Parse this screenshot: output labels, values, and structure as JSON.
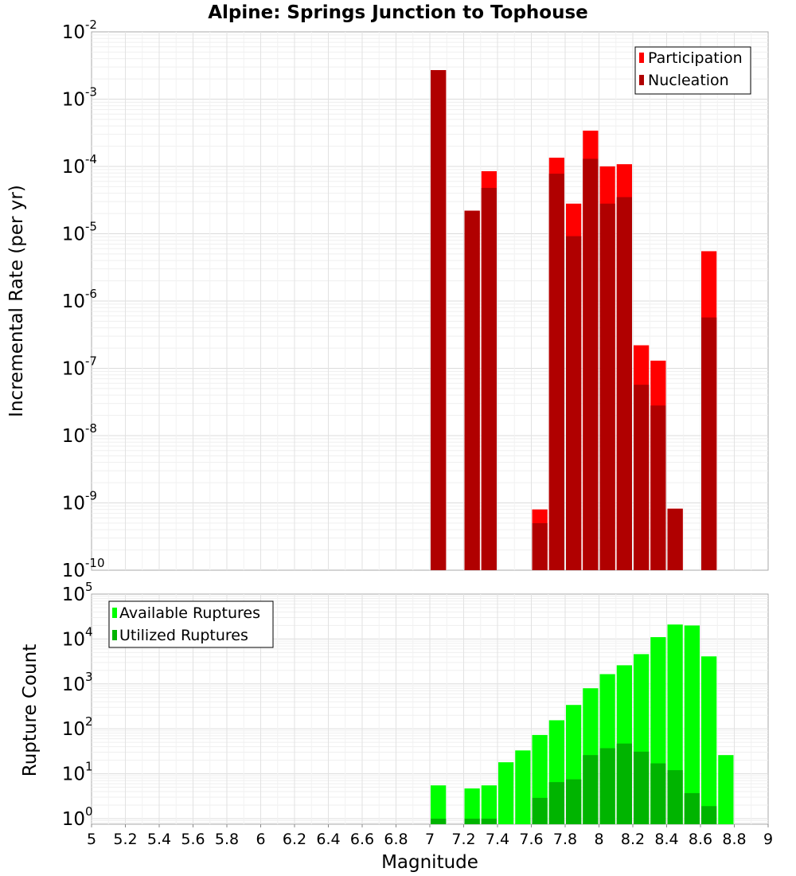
{
  "chart_data": [
    {
      "type": "bar",
      "title": "Alpine: Springs Junction to Tophouse",
      "xlabel": "",
      "ylabel": "Incremental Rate (per yr)",
      "yscale": "log",
      "ylim": [
        1e-10,
        0.01
      ],
      "xlim": [
        5,
        9
      ],
      "bar_width": 0.1,
      "ytick_labels": [
        {
          "base": "10",
          "exp": "-10"
        },
        {
          "base": "10",
          "exp": "-9"
        },
        {
          "base": "10",
          "exp": "-8"
        },
        {
          "base": "10",
          "exp": "-7"
        },
        {
          "base": "10",
          "exp": "-6"
        },
        {
          "base": "10",
          "exp": "-5"
        },
        {
          "base": "10",
          "exp": "-4"
        },
        {
          "base": "10",
          "exp": "-3"
        },
        {
          "base": "10",
          "exp": "-2"
        }
      ],
      "legend_position": "top-right",
      "grid": true,
      "x": [
        7.05,
        7.25,
        7.35,
        7.65,
        7.75,
        7.85,
        7.95,
        8.05,
        8.15,
        8.25,
        8.35,
        8.45,
        8.65
      ],
      "series": [
        {
          "name": "Participation",
          "color": "#ff0000",
          "values": [
            0.0027,
            2.2e-05,
            8.5e-05,
            8e-10,
            0.000135,
            2.8e-05,
            0.00034,
            0.0001,
            0.000108,
            2.2e-07,
            1.3e-07,
            8.2e-10,
            5.5e-06
          ]
        },
        {
          "name": "Nucleation",
          "color": "#b00000",
          "values": [
            0.0027,
            2.2e-05,
            4.8e-05,
            5e-10,
            7.8e-05,
            9.2e-06,
            0.00013,
            2.8e-05,
            3.5e-05,
            5.7e-08,
            2.8e-08,
            8.2e-10,
            5.7e-07
          ]
        }
      ]
    },
    {
      "type": "bar",
      "title": "",
      "xlabel": "Magnitude",
      "ylabel": "Rupture Count",
      "yscale": "log",
      "ylim": [
        0.75,
        100000.0
      ],
      "xlim": [
        5,
        9
      ],
      "bar_width": 0.1,
      "ytick_labels": [
        {
          "base": "10",
          "exp": "0"
        },
        {
          "base": "10",
          "exp": "1"
        },
        {
          "base": "10",
          "exp": "2"
        },
        {
          "base": "10",
          "exp": "3"
        },
        {
          "base": "10",
          "exp": "4"
        },
        {
          "base": "10",
          "exp": "5"
        }
      ],
      "xtick_labels": [
        "5",
        "5.2",
        "5.4",
        "5.6",
        "5.8",
        "6",
        "6.2",
        "6.4",
        "6.6",
        "6.8",
        "7",
        "7.2",
        "7.4",
        "7.6",
        "7.8",
        "8",
        "8.2",
        "8.4",
        "8.6",
        "8.8",
        "9"
      ],
      "legend_position": "top-left",
      "grid": true,
      "x": [
        7.05,
        7.25,
        7.35,
        7.45,
        7.55,
        7.65,
        7.75,
        7.85,
        7.95,
        8.05,
        8.15,
        8.25,
        8.35,
        8.45,
        8.55,
        8.65,
        8.75
      ],
      "series": [
        {
          "name": "Available Ruptures",
          "color": "#00ff00",
          "values": [
            5.5,
            4.7,
            5.5,
            18,
            33,
            73,
            155,
            340,
            800,
            1650,
            2600,
            4600,
            11000,
            21000,
            20000,
            4100,
            26
          ]
        },
        {
          "name": "Utilized Ruptures",
          "color": "#00b400",
          "values": [
            1,
            1,
            1,
            0,
            0,
            2.9,
            6.5,
            7.5,
            26,
            37,
            47,
            31,
            17,
            12,
            3.7,
            1.9,
            0
          ]
        }
      ]
    }
  ]
}
